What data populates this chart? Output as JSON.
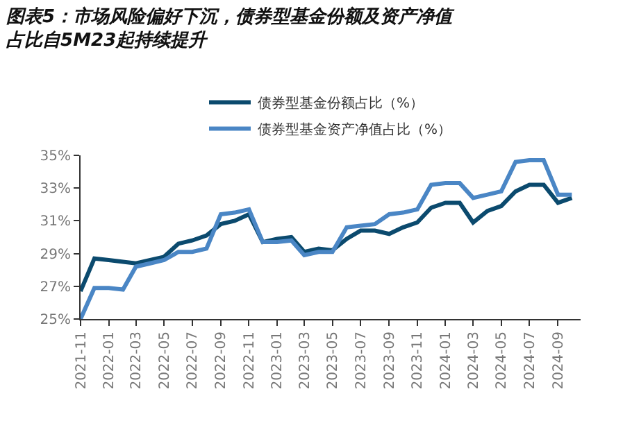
{
  "chart_data": {
    "type": "line",
    "title": "图表5：市场风险偏好下沉，债券型基金份额及资产净值占比自5M23起持续提升",
    "x": [
      "2021-11",
      "2021-12",
      "2022-01",
      "2022-02",
      "2022-03",
      "2022-04",
      "2022-05",
      "2022-06",
      "2022-07",
      "2022-08",
      "2022-09",
      "2022-10",
      "2022-11",
      "2022-12",
      "2023-01",
      "2023-02",
      "2023-03",
      "2023-04",
      "2023-05",
      "2023-06",
      "2023-07",
      "2023-08",
      "2023-09",
      "2023-10",
      "2023-11",
      "2023-12",
      "2024-01",
      "2024-02",
      "2024-03",
      "2024-04",
      "2024-05",
      "2024-06",
      "2024-07",
      "2024-08",
      "2024-09",
      "2024-10"
    ],
    "series": [
      {
        "name": "债券型基金份额占比（%）",
        "color": "#0b4a6e",
        "values": [
          26.7,
          28.7,
          28.6,
          28.5,
          28.4,
          28.6,
          28.8,
          29.6,
          29.8,
          30.1,
          30.8,
          31.0,
          31.4,
          29.7,
          29.9,
          30.0,
          29.1,
          29.3,
          29.2,
          29.9,
          30.4,
          30.4,
          30.2,
          30.6,
          30.9,
          31.8,
          32.1,
          32.1,
          30.9,
          31.6,
          31.9,
          32.8,
          33.2,
          33.2,
          32.1,
          32.4
        ]
      },
      {
        "name": "债券型基金资产净值占比（%）",
        "color": "#4a86c5",
        "values": [
          25.0,
          26.9,
          26.9,
          26.8,
          28.2,
          28.4,
          28.6,
          29.1,
          29.1,
          29.3,
          31.4,
          31.5,
          31.7,
          29.7,
          29.7,
          29.8,
          28.9,
          29.1,
          29.1,
          30.6,
          30.7,
          30.8,
          31.4,
          31.5,
          31.7,
          33.2,
          33.3,
          33.3,
          32.4,
          32.6,
          32.8,
          34.6,
          34.7,
          34.7,
          32.6,
          32.6
        ]
      }
    ],
    "xlim": [
      "2021-11-01",
      "2024-10-20"
    ],
    "xticks": [
      "2021-11",
      "2022-01",
      "2022-03",
      "2022-05",
      "2022-07",
      "2022-09",
      "2022-11",
      "2023-01",
      "2023-03",
      "2023-05",
      "2023-07",
      "2023-09",
      "2023-11",
      "2024-01",
      "2024-03",
      "2024-05",
      "2024-07",
      "2024-09"
    ],
    "ylim": [
      25,
      35
    ],
    "yticks": [
      {
        "value": 25,
        "label": "25%"
      },
      {
        "value": 27,
        "label": "27%"
      },
      {
        "value": 29,
        "label": "29%"
      },
      {
        "value": 31,
        "label": "31%"
      },
      {
        "value": 33,
        "label": "33%"
      },
      {
        "value": 35,
        "label": "35%"
      }
    ],
    "legend": "top",
    "marker": "none",
    "line_style": "solid"
  }
}
